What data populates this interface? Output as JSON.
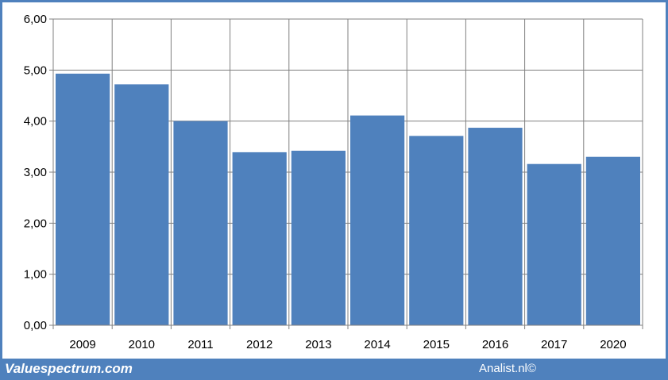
{
  "chart_data": {
    "type": "bar",
    "categories": [
      "2009",
      "2010",
      "2011",
      "2012",
      "2013",
      "2014",
      "2015",
      "2016",
      "2017",
      "2020"
    ],
    "values": [
      4.93,
      4.72,
      4.0,
      3.39,
      3.42,
      4.11,
      3.71,
      3.87,
      3.16,
      3.3
    ],
    "title": "",
    "xlabel": "",
    "ylabel": "",
    "ylim": [
      0,
      6
    ],
    "yticks": [
      "0,00",
      "1,00",
      "2,00",
      "3,00",
      "4,00",
      "5,00",
      "6,00"
    ],
    "grid": true,
    "legend": "none",
    "colors": {
      "bar": "#4f81bd",
      "frame": "#4f81bd",
      "grid": "#808080"
    }
  },
  "footer": {
    "brand": "Valuespectrum.com",
    "credit": "Analist.nl©"
  }
}
